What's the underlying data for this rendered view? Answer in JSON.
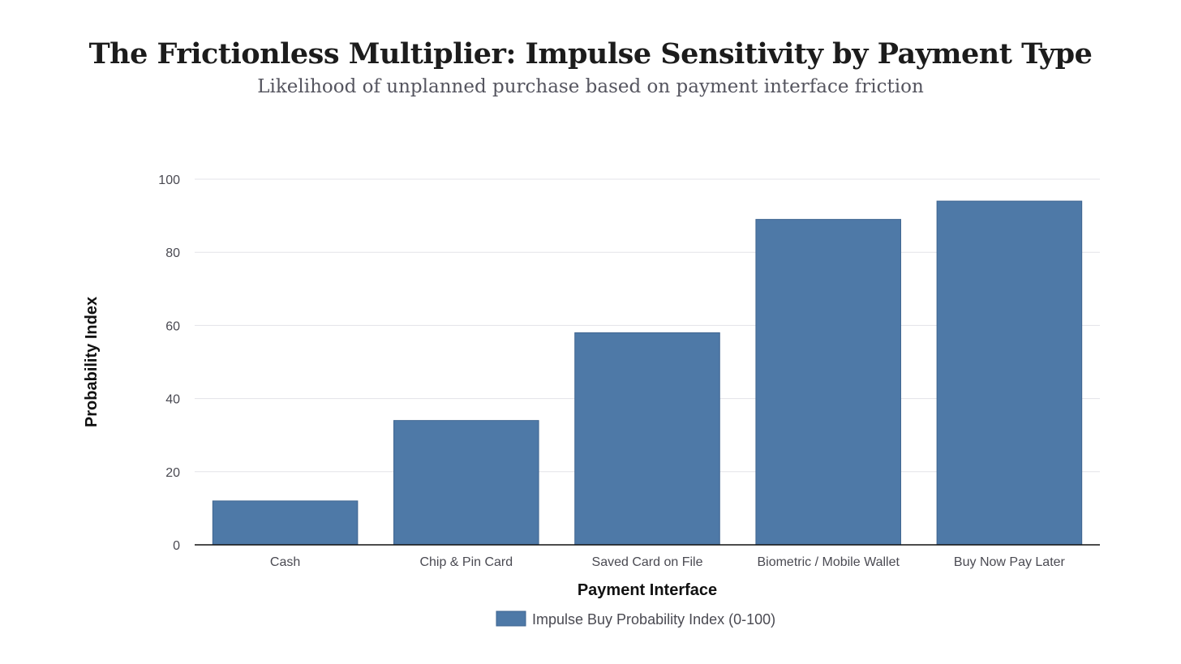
{
  "title": "The Frictionless Multiplier: Impulse Sensitivity by Payment Type",
  "subtitle": "Likelihood of unplanned purchase based on payment interface friction",
  "chart_data": {
    "type": "bar",
    "categories": [
      "Cash",
      "Chip & Pin Card",
      "Saved Card on File",
      "Biometric / Mobile Wallet",
      "Buy Now Pay Later"
    ],
    "series": [
      {
        "name": "Impulse Buy Probability Index (0-100)",
        "values": [
          12,
          34,
          58,
          89,
          94
        ],
        "color": "#4e79a7"
      }
    ],
    "xlabel": "Payment Interface",
    "ylabel": "Probability Index",
    "ylim": [
      0,
      100
    ],
    "yticks": [
      0,
      20,
      40,
      60,
      80,
      100
    ],
    "grid": true,
    "legend": "bottom-center"
  }
}
